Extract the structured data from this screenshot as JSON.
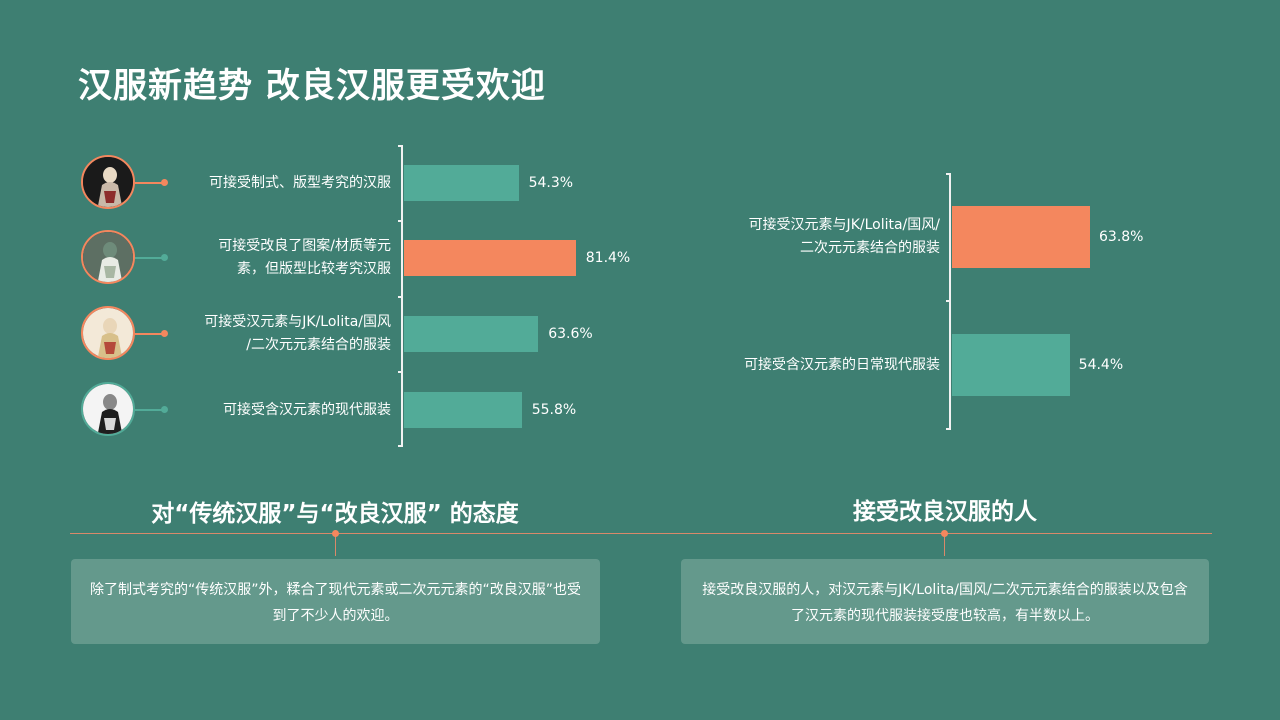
{
  "title": "汉服新趋势 改良汉服更受欢迎",
  "colors": {
    "background": "#3e7f72",
    "teal_bar": "#52ab98",
    "orange_bar": "#f4875e",
    "box": "#64998c"
  },
  "chart_data": [
    {
      "type": "bar",
      "orientation": "horizontal",
      "categories": [
        "可接受制式、版型考究的汉服",
        "可接受改良了图案/材质等元素，但版型比较考究汉服",
        "可接受汉元素与JK/Lolita/国风/二次元元素结合的服装",
        "可接受含汉元素的现代服装"
      ],
      "category_lines": [
        [
          "可接受制式、版型考究的汉服"
        ],
        [
          "可接受改良了图案/材质等元",
          "素，但版型比较考究汉服"
        ],
        [
          "可接受汉元素与JK/Lolita/国风",
          "/二次元元素结合的服装"
        ],
        [
          "可接受含汉元素的现代服装"
        ]
      ],
      "values": [
        54.3,
        81.4,
        63.6,
        55.8
      ],
      "value_labels": [
        "54.3%",
        "81.4%",
        "63.6%",
        "55.8%"
      ],
      "highlight": [
        false,
        true,
        false,
        false
      ],
      "icons": [
        "hanfu-photo-1-icon",
        "hanfu-photo-2-icon",
        "hanfu-photo-3-icon",
        "hanfu-photo-4-icon"
      ],
      "xlim": [
        0,
        100
      ]
    },
    {
      "type": "bar",
      "orientation": "horizontal",
      "categories": [
        "可接受汉元素与JK/Lolita/国风/二次元元素结合的服装",
        "可接受含汉元素的日常现代服装"
      ],
      "category_lines": [
        [
          "可接受汉元素与JK/Lolita/国风/",
          "二次元元素结合的服装"
        ],
        [
          "可接受含汉元素的日常现代服装"
        ]
      ],
      "values": [
        63.8,
        54.4
      ],
      "value_labels": [
        "63.8%",
        "54.4%"
      ],
      "highlight": [
        true,
        false
      ],
      "xlim": [
        0,
        100
      ]
    }
  ],
  "sections": [
    {
      "heading": "对“传统汉服”与“改良汉服” 的态度",
      "text": "除了制式考究的“传统汉服”外，糅合了现代元素或二次元元素的“改良汉服”也受到了不少人的欢迎。"
    },
    {
      "heading": "接受改良汉服的人",
      "text": "接受改良汉服的人，对汉元素与JK/Lolita/国风/二次元元素结合的服装以及包含了汉元素的现代服装接受度也较高，有半数以上。"
    }
  ]
}
